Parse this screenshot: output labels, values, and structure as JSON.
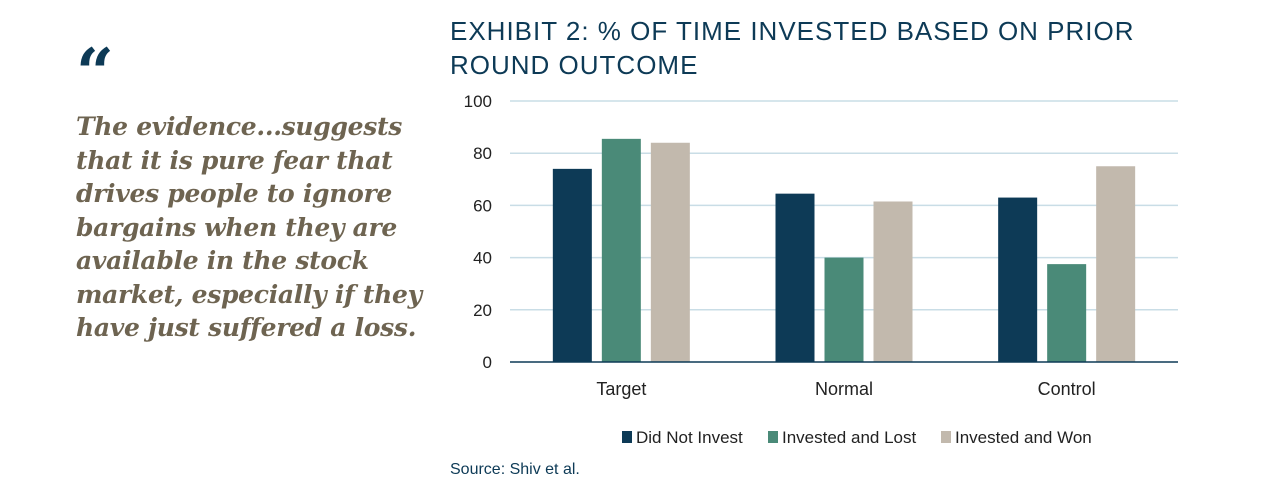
{
  "quote": {
    "mark": "“",
    "lines": [
      "The evidence...suggests",
      "that it is pure fear that",
      "drives people to ignore",
      "bargains when they are",
      "available in the stock",
      "market, especially if they",
      "have just suffered a loss."
    ]
  },
  "chart_data": {
    "type": "bar",
    "title_lines": [
      "EXHIBIT 2: % OF TIME INVESTED BASED ON PRIOR",
      "ROUND OUTCOME"
    ],
    "categories": [
      "Target",
      "Normal",
      "Control"
    ],
    "series": [
      {
        "name": "Did Not Invest",
        "color": "#0d3a56",
        "values": [
          74,
          64.5,
          63
        ]
      },
      {
        "name": "Invested and Lost",
        "color": "#4a8a78",
        "values": [
          85.5,
          40,
          37.5
        ]
      },
      {
        "name": "Invested and Won",
        "color": "#c2b9ad",
        "values": [
          84,
          61.5,
          75
        ]
      }
    ],
    "ylim": [
      0,
      100
    ],
    "yticks": [
      0,
      20,
      40,
      60,
      80,
      100
    ],
    "grid": true,
    "legend_position": "bottom"
  },
  "source": "Source: Shiv et al."
}
